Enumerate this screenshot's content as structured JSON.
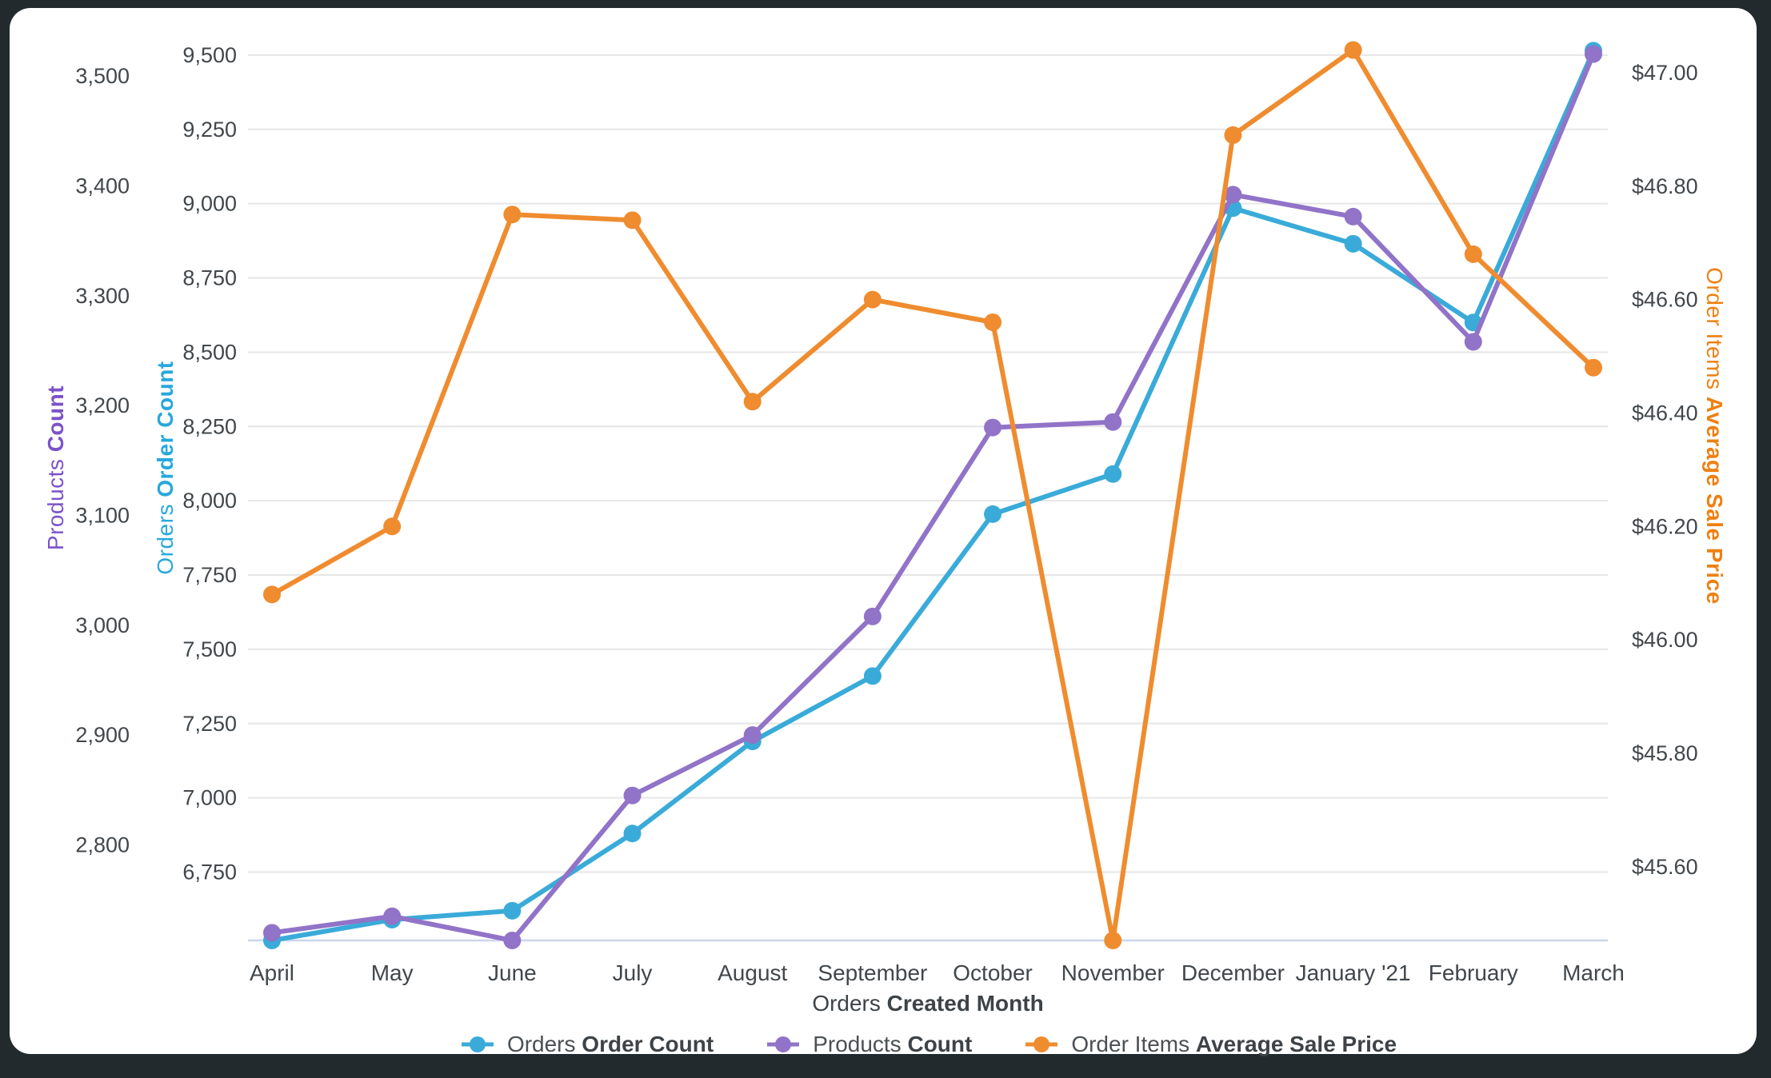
{
  "chart_data": {
    "type": "line",
    "categories": [
      "April",
      "May",
      "June",
      "July",
      "August",
      "September",
      "October",
      "November",
      "December",
      "January '21",
      "February",
      "March"
    ],
    "x_title": {
      "view": "Orders",
      "measure": "Created Month"
    },
    "series": [
      {
        "name_view": "Orders",
        "name_measure": "Order Count",
        "axis": "orders",
        "color": "#3aabd9",
        "values": [
          6520,
          6590,
          6620,
          6880,
          7190,
          7410,
          7955,
          8090,
          8985,
          8865,
          8600,
          9515
        ]
      },
      {
        "name_view": "Products",
        "name_measure": "Count",
        "axis": "products",
        "color": "#9173c8",
        "values": [
          2720,
          2735,
          2713,
          2845,
          2900,
          3008,
          3180,
          3185,
          3392,
          3372,
          3258,
          3520
        ]
      },
      {
        "name_view": "Order Items",
        "name_measure": "Average Sale Price",
        "axis": "price",
        "color": "#ef8c2f",
        "values": [
          46.08,
          46.2,
          46.75,
          46.74,
          46.42,
          46.6,
          46.56,
          45.47,
          46.89,
          47.04,
          46.68,
          46.48
        ]
      }
    ],
    "axes": {
      "products": {
        "title_view": "Products",
        "title_measure": "Count",
        "title_color": "#7b52c9",
        "tick_labels": [
          "3,500",
          "3,400",
          "3,300",
          "3,200",
          "3,100",
          "3,000",
          "2,900",
          "2,800"
        ],
        "tick_values": [
          3500,
          3400,
          3300,
          3200,
          3100,
          3000,
          2900,
          2800
        ]
      },
      "orders": {
        "title_view": "Orders",
        "title_measure": "Order Count",
        "title_color": "#26a8dc",
        "tick_labels": [
          "9,500",
          "9,250",
          "9,000",
          "8,750",
          "8,500",
          "8,250",
          "8,000",
          "7,750",
          "7,500",
          "7,250",
          "7,000",
          "6,750"
        ],
        "tick_values": [
          9500,
          9250,
          9000,
          8750,
          8500,
          8250,
          8000,
          7750,
          7500,
          7250,
          7000,
          6750
        ]
      },
      "price": {
        "title_view": "Order Items",
        "title_measure": "Average Sale Price",
        "title_color": "#ee8012",
        "tick_labels": [
          "$47.00",
          "$46.80",
          "$46.60",
          "$46.40",
          "$46.20",
          "$46.00",
          "$45.80",
          "$45.60"
        ],
        "tick_values": [
          47.0,
          46.8,
          46.6,
          46.4,
          46.2,
          46.0,
          45.8,
          45.6
        ]
      }
    },
    "colors": {
      "gridline": "#e6e6e6",
      "baseline": "#ccd6eb",
      "tick_text": "#41474b",
      "x_title_text": "#3d4347"
    }
  }
}
